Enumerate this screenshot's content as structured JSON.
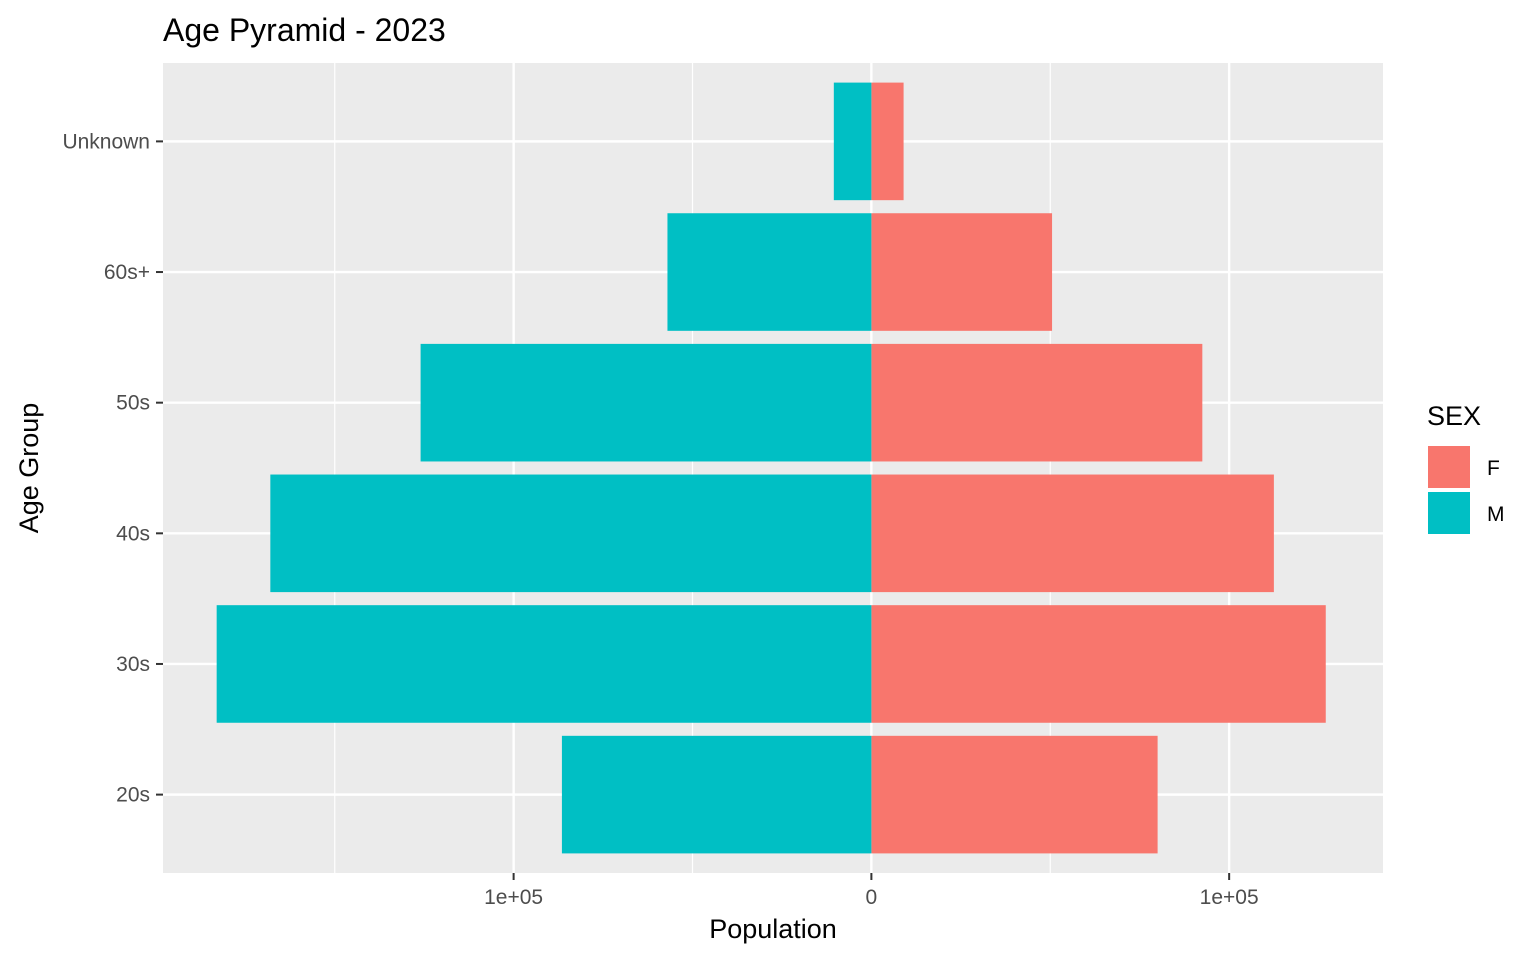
{
  "chart_data": {
    "type": "bar",
    "orientation": "horizontal",
    "title": "Age Pyramid - 2023",
    "xlabel": "Population",
    "ylabel": "Age Group",
    "categories": [
      "20s",
      "30s",
      "40s",
      "50s",
      "60s+",
      "Unknown"
    ],
    "series": [
      {
        "name": "F",
        "color": "#F8766D",
        "values": [
          80000,
          127000,
          112500,
          92500,
          50500,
          9000
        ]
      },
      {
        "name": "M",
        "color": "#00BFC4",
        "values": [
          -86500,
          -183000,
          -168000,
          -126000,
          -57000,
          -10500
        ]
      }
    ],
    "xlim": [
      -198000,
      143000
    ],
    "x_ticks": [
      {
        "value": -100000,
        "label": "1e+05"
      },
      {
        "value": 0,
        "label": "0"
      },
      {
        "value": 100000,
        "label": "1e+05"
      }
    ],
    "x_minor_ticks": [
      -150000,
      -50000,
      50000
    ],
    "grid": true,
    "legend": {
      "title": "SEX",
      "position": "right",
      "entries": [
        "F",
        "M"
      ]
    }
  }
}
